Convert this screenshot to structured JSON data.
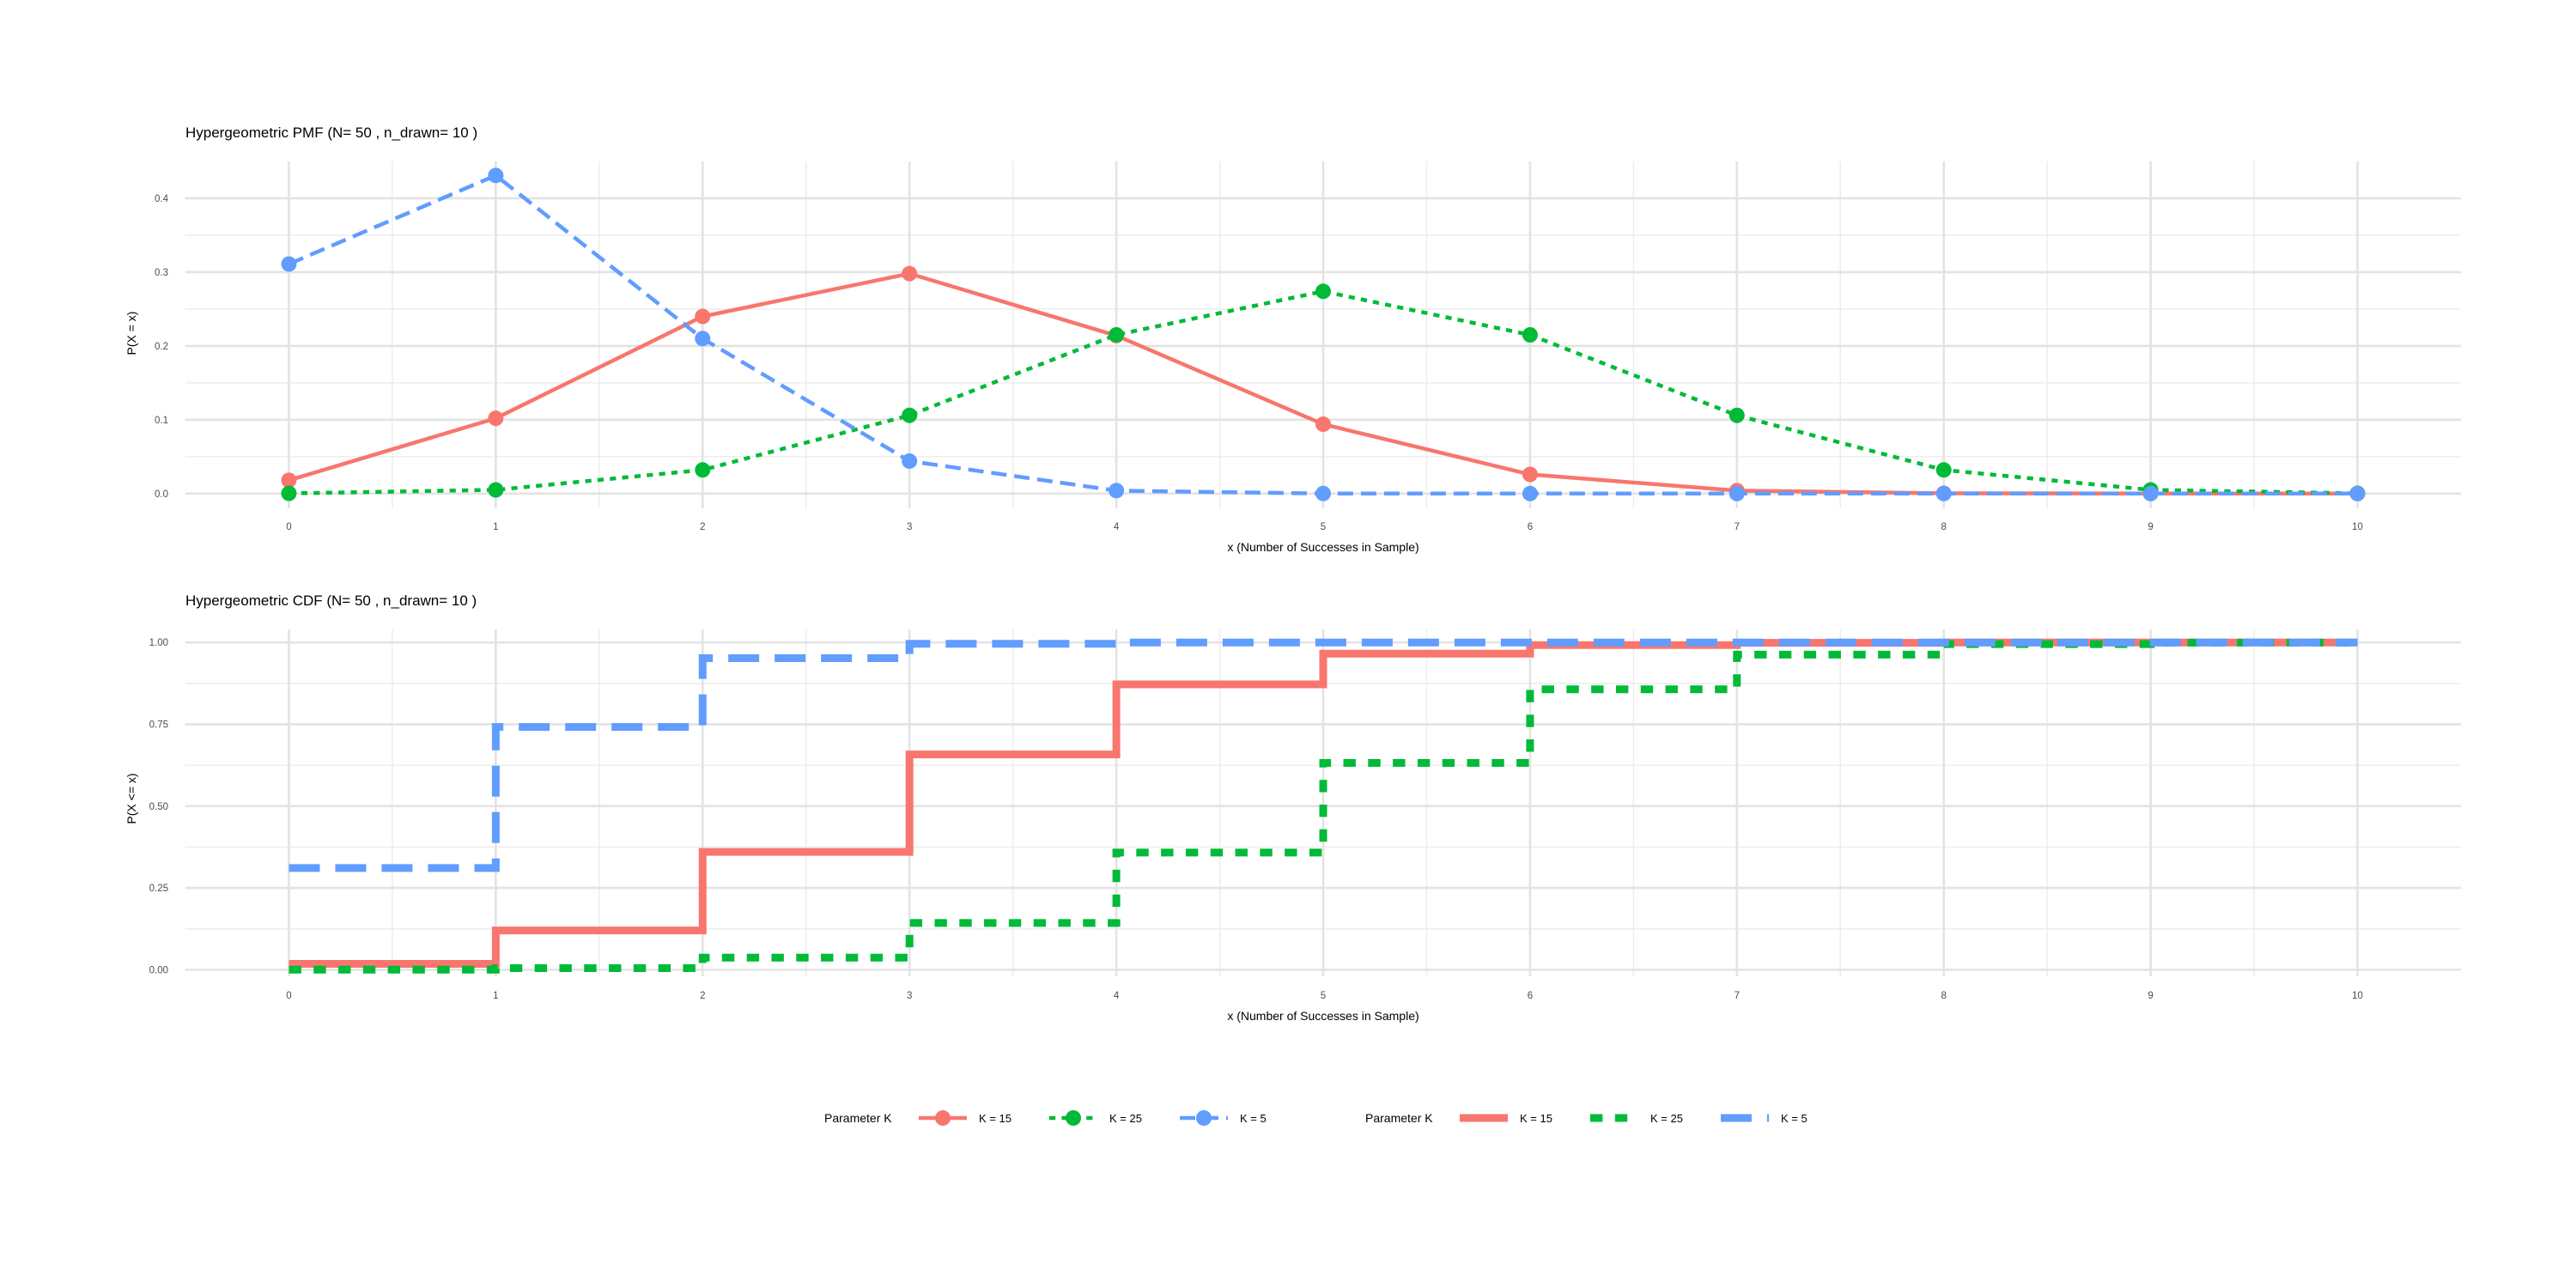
{
  "chart_data": [
    {
      "type": "line",
      "title": "Hypergeometric PMF (N= 50 , n_drawn= 10 )",
      "xlabel": "x (Number of Successes in Sample)",
      "ylabel": "P(X = x)",
      "x": [
        0,
        1,
        2,
        3,
        4,
        5,
        6,
        7,
        8,
        9,
        10
      ],
      "xticks": [
        "0",
        "1",
        "2",
        "3",
        "4",
        "5",
        "6",
        "7",
        "8",
        "9",
        "10"
      ],
      "xlim": [
        -0.5,
        10.5
      ],
      "ylim": [
        -0.02,
        0.45
      ],
      "yticks": [
        0.0,
        0.1,
        0.2,
        0.3,
        0.4
      ],
      "ytick_labels": [
        "0.0",
        "0.1",
        "0.2",
        "0.3",
        "0.4"
      ],
      "grid": true,
      "series": [
        {
          "name": "K = 15",
          "color": "#F8766D",
          "dash": "solid",
          "values": [
            0.018,
            0.102,
            0.24,
            0.298,
            0.214,
            0.094,
            0.026,
            0.004,
            0.0004,
            0.0,
            0.0
          ]
        },
        {
          "name": "K = 25",
          "color": "#00BA38",
          "dash": "dotted",
          "values": [
            0.0003,
            0.005,
            0.032,
            0.106,
            0.215,
            0.274,
            0.215,
            0.106,
            0.032,
            0.005,
            0.0003
          ]
        },
        {
          "name": "K = 5",
          "color": "#619CFF",
          "dash": "dashed",
          "values": [
            0.311,
            0.431,
            0.21,
            0.044,
            0.004,
            0.0001,
            0.0,
            0.0,
            0.0,
            0.0,
            0.0
          ]
        }
      ]
    },
    {
      "type": "line",
      "step": true,
      "title": "Hypergeometric CDF (N= 50 , n_drawn= 10 )",
      "xlabel": "x (Number of Successes in Sample)",
      "ylabel": "P(X <= x)",
      "x": [
        0,
        1,
        2,
        3,
        4,
        5,
        6,
        7,
        8,
        9,
        10
      ],
      "xticks": [
        "0",
        "1",
        "2",
        "3",
        "4",
        "5",
        "6",
        "7",
        "8",
        "9",
        "10"
      ],
      "xlim": [
        -0.5,
        10.5
      ],
      "ylim": [
        -0.02,
        1.04
      ],
      "yticks": [
        0.0,
        0.25,
        0.5,
        0.75,
        1.0
      ],
      "ytick_labels": [
        "0.00",
        "0.25",
        "0.50",
        "0.75",
        "1.00"
      ],
      "grid": true,
      "series": [
        {
          "name": "K = 15",
          "color": "#F8766D",
          "dash": "solid",
          "values": [
            0.018,
            0.12,
            0.36,
            0.658,
            0.872,
            0.966,
            0.992,
            0.999,
            1.0,
            1.0,
            1.0
          ]
        },
        {
          "name": "K = 25",
          "color": "#00BA38",
          "dash": "dotted",
          "values": [
            0.0003,
            0.005,
            0.037,
            0.143,
            0.358,
            0.632,
            0.857,
            0.963,
            0.995,
            0.9997,
            1.0
          ]
        },
        {
          "name": "K = 5",
          "color": "#619CFF",
          "dash": "dashed",
          "values": [
            0.311,
            0.742,
            0.952,
            0.996,
            1.0,
            1.0,
            1.0,
            1.0,
            1.0,
            1.0,
            1.0
          ]
        }
      ]
    }
  ],
  "legends": [
    {
      "title": "Parameter K",
      "items": [
        {
          "label": "K = 15",
          "color": "#F8766D",
          "dash": "solid"
        },
        {
          "label": "K = 25",
          "color": "#00BA38",
          "dash": "dotted"
        },
        {
          "label": "K = 5",
          "color": "#619CFF",
          "dash": "dashed"
        }
      ]
    },
    {
      "title": "Parameter K",
      "items": [
        {
          "label": "K = 15",
          "color": "#F8766D",
          "dash": "solid"
        },
        {
          "label": "K = 25",
          "color": "#00BA38",
          "dash": "dotted"
        },
        {
          "label": "K = 5",
          "color": "#619CFF",
          "dash": "dashed"
        }
      ]
    }
  ]
}
